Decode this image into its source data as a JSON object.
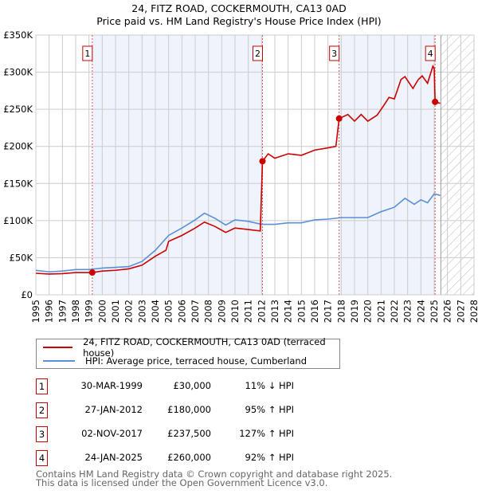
{
  "title": "24, FITZ ROAD, COCKERMOUTH, CA13 0AD",
  "subtitle": "Price paid vs. HM Land Registry's House Price Index (HPI)",
  "chart_data": {
    "type": "line",
    "title": "24, FITZ ROAD, COCKERMOUTH, CA13 0AD — Price paid vs. HM Land Registry's House Price Index (HPI)",
    "xlim": [
      1995,
      2028
    ],
    "ylim": [
      0,
      350000
    ],
    "xticks": [
      "1995",
      "1996",
      "1997",
      "1998",
      "1999",
      "2000",
      "2001",
      "2002",
      "2003",
      "2004",
      "2005",
      "2006",
      "2007",
      "2008",
      "2009",
      "2010",
      "2011",
      "2012",
      "2013",
      "2014",
      "2015",
      "2016",
      "2017",
      "2018",
      "2019",
      "2020",
      "2021",
      "2022",
      "2023",
      "2024",
      "2025",
      "2026",
      "2027",
      "2028"
    ],
    "yticks": [
      {
        "v": 0,
        "label": "£0"
      },
      {
        "v": 50000,
        "label": "£50K"
      },
      {
        "v": 100000,
        "label": "£100K"
      },
      {
        "v": 150000,
        "label": "£150K"
      },
      {
        "v": 200000,
        "label": "£200K"
      },
      {
        "v": 250000,
        "label": "£250K"
      },
      {
        "v": 300000,
        "label": "£300K"
      },
      {
        "v": 350000,
        "label": "£350K"
      }
    ],
    "grid": true,
    "legend": "below",
    "series": [
      {
        "name": "24, FITZ ROAD, COCKERMOUTH, CA13 0AD (terraced house)",
        "color": "#cc0000",
        "x": [
          1995,
          1996,
          1997,
          1998,
          1999.25,
          2000,
          2001,
          2002,
          2003,
          2004,
          2004.8,
          2005,
          2006,
          2007,
          2007.7,
          2008.5,
          2009.3,
          2010,
          2011,
          2011.9,
          2012.07,
          2012.5,
          2013,
          2014,
          2015,
          2016,
          2017,
          2017.6,
          2017.84,
          2018.5,
          2019,
          2019.5,
          2020,
          2020.7,
          2021.2,
          2021.6,
          2022,
          2022.5,
          2022.8,
          2023.4,
          2023.8,
          2024.1,
          2024.5,
          2024.9,
          2025.0,
          2025.07,
          2025.45
        ],
        "y": [
          29000,
          28000,
          28500,
          30000,
          30000,
          32000,
          33000,
          35000,
          40000,
          52000,
          60000,
          72000,
          80000,
          90000,
          98000,
          92000,
          84000,
          90000,
          88000,
          86000,
          180000,
          190000,
          184000,
          190000,
          188000,
          195000,
          198000,
          200000,
          237500,
          243000,
          234000,
          243000,
          234000,
          242000,
          255000,
          266000,
          264000,
          290000,
          294000,
          278000,
          290000,
          295000,
          285000,
          308000,
          305000,
          260000,
          258000
        ]
      },
      {
        "name": "HPI: Average price, terraced house, Cumberland",
        "color": "#5b8fd6",
        "x": [
          1995,
          1996,
          1997,
          1998,
          1999,
          2000,
          2001,
          2002,
          2003,
          2004,
          2005,
          2006,
          2007,
          2007.7,
          2008.5,
          2009.3,
          2010,
          2011,
          2012,
          2013,
          2014,
          2015,
          2016,
          2017,
          2018,
          2019,
          2020,
          2021,
          2022,
          2022.8,
          2023.5,
          2024,
          2024.5,
          2025,
          2025.45
        ],
        "y": [
          33000,
          31000,
          32000,
          34000,
          34000,
          36000,
          37000,
          38000,
          45000,
          60000,
          80000,
          90000,
          101000,
          110000,
          103000,
          94000,
          101000,
          99000,
          95000,
          95000,
          97000,
          97000,
          101000,
          102000,
          104000,
          104000,
          104000,
          112000,
          118000,
          130000,
          122000,
          128000,
          124000,
          136000,
          134000
        ]
      }
    ],
    "sales": [
      {
        "n": "1",
        "x": 1999.25,
        "y": 30000,
        "date": "30-MAR-1999",
        "price": "£30,000",
        "hpi": "11% ↓ HPI"
      },
      {
        "n": "2",
        "x": 2012.07,
        "y": 180000,
        "date": "27-JAN-2012",
        "price": "£180,000",
        "hpi": "95% ↑ HPI"
      },
      {
        "n": "3",
        "x": 2017.84,
        "y": 237500,
        "date": "02-NOV-2017",
        "price": "£237,500",
        "hpi": "127% ↑ HPI"
      },
      {
        "n": "4",
        "x": 2025.07,
        "y": 260000,
        "date": "24-JAN-2025",
        "price": "£260,000",
        "hpi": "92% ↑ HPI"
      }
    ],
    "shaded": [
      [
        1999.25,
        2012.07
      ],
      [
        2017.84,
        2025.07
      ]
    ],
    "forecast_from": 2025.5
  },
  "footer": {
    "line1": "Contains HM Land Registry data © Crown copyright and database right 2025.",
    "line2": "This data is licensed under the Open Government Licence v3.0."
  }
}
